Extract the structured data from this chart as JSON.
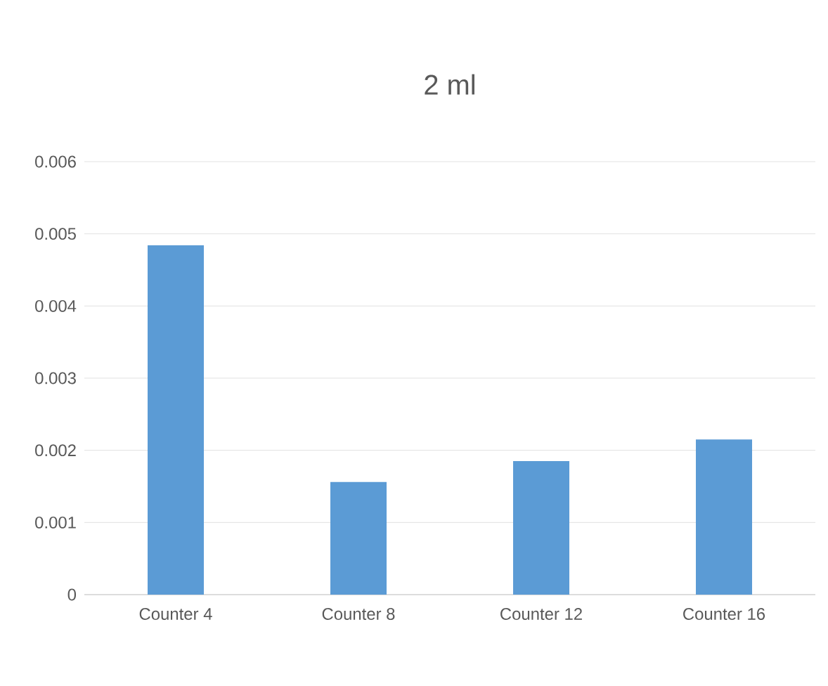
{
  "chart_data": {
    "type": "bar",
    "title": "2 ml",
    "categories": [
      "Counter 4",
      "Counter 8",
      "Counter 12",
      "Counter 16"
    ],
    "values": [
      0.00484,
      0.00156,
      0.00185,
      0.00215
    ],
    "color": "#5b9bd5",
    "ylim": [
      0,
      0.006
    ],
    "yticks": [
      0,
      0.001,
      0.002,
      0.003,
      0.004,
      0.005,
      0.006
    ],
    "grid": "y"
  }
}
